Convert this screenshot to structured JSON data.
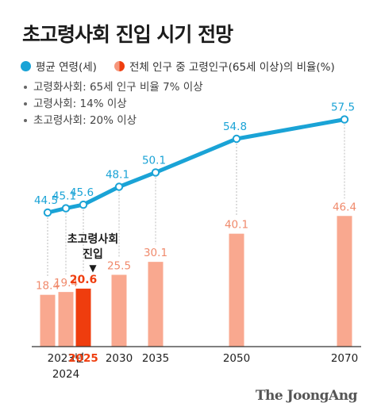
{
  "title": "초고령사회 진입 시기 전망",
  "legend": {
    "avg_age": "평균 연령(세)",
    "ratio": "전체 인구 중 고령인구(65세 이상)의 비율(%)"
  },
  "notes": [
    "고령화사회: 65세 인구 비율 7% 이상",
    "고령사회: 14% 이상",
    "초고령사회: 20% 이상"
  ],
  "annotation": {
    "line1": "초고령사회",
    "line2": "진입",
    "arrow": "▼"
  },
  "credit": "The JoongAng",
  "colors": {
    "line": "#1aa3d6",
    "bar": "#f9a88f",
    "bar_highlight": "#ef3d0e",
    "bar_label": "#f08a6c",
    "axis": "#333333"
  },
  "chart_data": {
    "type": "bar+line",
    "x": [
      2023,
      2024,
      2025,
      2030,
      2035,
      2050,
      2070
    ],
    "tick_labels": [
      {
        "x": 2023.5,
        "text": "2023년",
        "highlight": false
      },
      {
        "x": 2024,
        "text": "2024",
        "highlight": false
      },
      {
        "x": 2025,
        "text": "2025",
        "highlight": true
      },
      {
        "x": 2030,
        "text": "2030",
        "highlight": false
      },
      {
        "x": 2035,
        "text": "2035",
        "highlight": false
      },
      {
        "x": 2050,
        "text": "2050",
        "highlight": false
      },
      {
        "x": 2070,
        "text": "2070",
        "highlight": false
      }
    ],
    "series": [
      {
        "name": "평균 연령(세)",
        "kind": "line",
        "values": [
          44.5,
          45.1,
          45.6,
          48.1,
          50.1,
          54.8,
          57.5
        ]
      },
      {
        "name": "전체 인구 중 고령인구(65세 이상)의 비율(%)",
        "kind": "bar",
        "values": [
          18.4,
          19.4,
          20.6,
          25.5,
          30.1,
          40.1,
          46.4
        ],
        "highlight_year": 2025
      }
    ]
  }
}
